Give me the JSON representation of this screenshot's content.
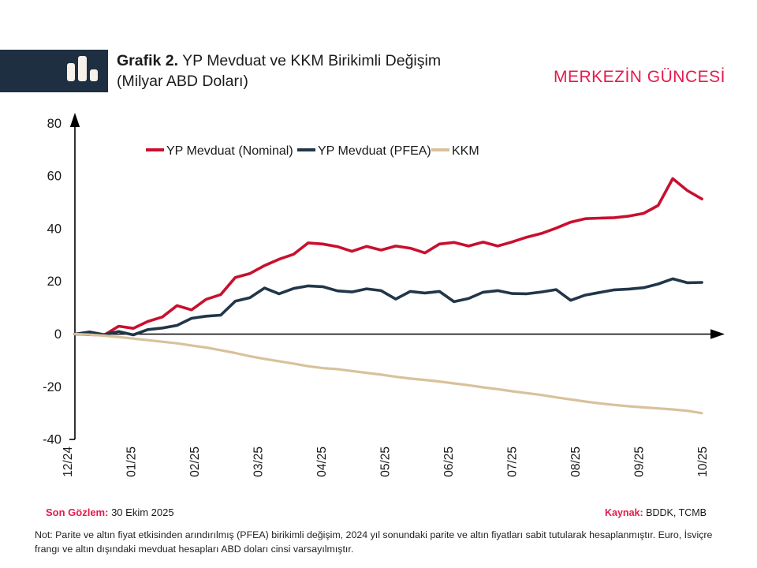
{
  "header": {
    "title_prefix": "Grafik 2.",
    "title_rest": " YP Mevduat ve KKM Birikimli Değişim",
    "subtitle": "(Milyar ABD Doları)",
    "brand": "MERKEZİN GÜNCESİ"
  },
  "colors": {
    "accent_red": "#E41B4D",
    "line_red": "#C8102E",
    "line_navy": "#223649",
    "line_tan": "#D8C29B",
    "brand_box_navy": "#1F2F42"
  },
  "chart_data": {
    "type": "line",
    "title": "Grafik 2. YP Mevduat ve KKM Birikimli Değişim (Milyar ABD Doları)",
    "xlabel": "",
    "ylabel": "Milyar ABD Doları",
    "x_ticks": [
      "12/24",
      "01/25",
      "02/25",
      "03/25",
      "04/25",
      "05/25",
      "06/25",
      "07/25",
      "08/25",
      "09/25",
      "10/25"
    ],
    "y_ticks": [
      80,
      60,
      40,
      20,
      0,
      -20,
      -40
    ],
    "ylim": [
      -40,
      80
    ],
    "grid": false,
    "legend_position": "top",
    "x_frequency": "weekly, 12/24 to 10/25",
    "series": [
      {
        "name": "YP Mevduat (Nominal)",
        "color": "#C8102E",
        "values": [
          0,
          -0.2,
          -0.4,
          3.0,
          2.2,
          4.8,
          6.5,
          10.8,
          9.2,
          13.2,
          15.0,
          21.5,
          23.0,
          26.0,
          28.4,
          30.3,
          34.6,
          34.2,
          33.2,
          31.4,
          33.3,
          31.9,
          33.4,
          32.6,
          30.8,
          34.2,
          34.8,
          33.4,
          34.9,
          33.4,
          35.0,
          36.8,
          38.2,
          40.2,
          42.5,
          43.8,
          44.0,
          44.2,
          44.8,
          45.8,
          48.8,
          59.0,
          54.5,
          51.3
        ]
      },
      {
        "name": "YP Mevduat (PFEA)",
        "color": "#223649",
        "values": [
          0,
          0.8,
          -0.2,
          1.0,
          -0.3,
          1.7,
          2.3,
          3.3,
          6.0,
          6.8,
          7.2,
          12.5,
          13.8,
          17.5,
          15.3,
          17.3,
          18.3,
          18.0,
          16.4,
          16.0,
          17.2,
          16.5,
          13.3,
          16.2,
          15.6,
          16.2,
          12.3,
          13.5,
          15.9,
          16.5,
          15.4,
          15.3,
          16.0,
          16.9,
          12.8,
          14.8,
          15.8,
          16.8,
          17.1,
          17.6,
          19.0,
          21.0,
          19.5,
          19.6
        ]
      },
      {
        "name": "KKM",
        "color": "#D8C29B",
        "values": [
          0,
          -0.2,
          -0.6,
          -1.1,
          -1.7,
          -2.3,
          -2.9,
          -3.5,
          -4.3,
          -5.1,
          -6.1,
          -7.2,
          -8.4,
          -9.4,
          -10.3,
          -11.2,
          -12.2,
          -12.9,
          -13.3,
          -14.0,
          -14.7,
          -15.4,
          -16.2,
          -16.9,
          -17.4,
          -18.0,
          -18.7,
          -19.4,
          -20.2,
          -20.9,
          -21.7,
          -22.4,
          -23.1,
          -24.0,
          -24.8,
          -25.6,
          -26.3,
          -26.9,
          -27.4,
          -27.8,
          -28.2,
          -28.6,
          -29.1,
          -30.0
        ]
      }
    ]
  },
  "footer": {
    "last_obs_label": "Son Gözlem:",
    "last_obs_value": "30 Ekim 2025",
    "source_label": "Kaynak:",
    "source_value": "BDDK, TCMB",
    "note_lines": [
      "Not: Parite ve altın fiyat etkisinden arındırılmış (PFEA) birikimli değişim, 2024 yıl sonundaki parite ve altın fiyatları sabit tutularak hesaplanmıştır. Euro, İsviçre",
      "frangı ve altın dışındaki mevduat hesapları ABD doları cinsi varsayılmıştır."
    ]
  }
}
